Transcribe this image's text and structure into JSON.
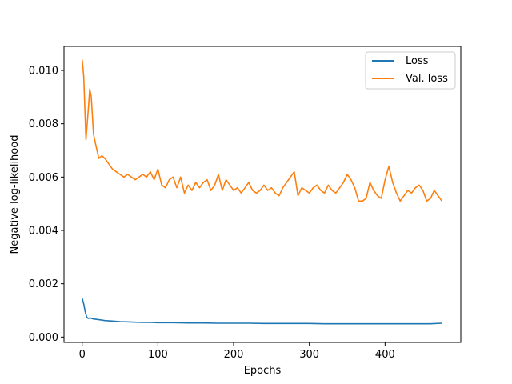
{
  "chart_data": {
    "type": "line",
    "xlabel": "Epochs",
    "ylabel": "Negative log-likelihood",
    "xlim": [
      -24,
      500
    ],
    "ylim": [
      -0.0002,
      0.0109
    ],
    "x_ticks": [
      0,
      100,
      200,
      300,
      400
    ],
    "x_tick_labels": [
      "0",
      "100",
      "200",
      "300",
      "400"
    ],
    "y_ticks": [
      0.0,
      0.002,
      0.004,
      0.006,
      0.008,
      0.01
    ],
    "y_tick_labels": [
      "0.000",
      "0.002",
      "0.004",
      "0.006",
      "0.008",
      "0.010"
    ],
    "grid": false,
    "legend_position": "top-right",
    "series": [
      {
        "name": "Loss",
        "color": "#1f77b4",
        "x": [
          0,
          2,
          4,
          6,
          8,
          10,
          15,
          20,
          30,
          40,
          50,
          60,
          70,
          80,
          90,
          100,
          120,
          140,
          160,
          180,
          200,
          220,
          240,
          260,
          280,
          300,
          320,
          340,
          360,
          380,
          400,
          420,
          440,
          460,
          475
        ],
        "y": [
          0.00145,
          0.00125,
          0.00095,
          0.00075,
          0.0007,
          0.00072,
          0.00068,
          0.00066,
          0.00062,
          0.0006,
          0.00058,
          0.00057,
          0.00056,
          0.00055,
          0.00055,
          0.00054,
          0.00054,
          0.00053,
          0.00053,
          0.00052,
          0.00052,
          0.00052,
          0.00051,
          0.00051,
          0.00051,
          0.00051,
          0.0005,
          0.0005,
          0.0005,
          0.0005,
          0.0005,
          0.0005,
          0.0005,
          0.0005,
          0.00052
        ]
      },
      {
        "name": "Val. loss",
        "color": "#ff7f0e",
        "x": [
          0,
          2,
          5,
          8,
          10,
          12,
          15,
          18,
          22,
          26,
          30,
          35,
          40,
          45,
          50,
          55,
          60,
          65,
          70,
          75,
          80,
          85,
          90,
          95,
          100,
          105,
          110,
          115,
          120,
          125,
          130,
          135,
          140,
          145,
          150,
          155,
          160,
          165,
          170,
          175,
          180,
          185,
          190,
          195,
          200,
          205,
          210,
          215,
          220,
          225,
          230,
          235,
          240,
          245,
          250,
          255,
          260,
          265,
          270,
          275,
          280,
          285,
          290,
          295,
          300,
          305,
          310,
          315,
          320,
          325,
          330,
          335,
          340,
          345,
          350,
          355,
          360,
          365,
          370,
          375,
          380,
          385,
          390,
          395,
          400,
          405,
          410,
          415,
          420,
          425,
          430,
          435,
          440,
          445,
          450,
          455,
          460,
          465,
          470,
          475
        ],
        "y": [
          0.0104,
          0.0098,
          0.0074,
          0.0085,
          0.0093,
          0.009,
          0.0076,
          0.0072,
          0.0067,
          0.0068,
          0.0067,
          0.0065,
          0.0063,
          0.0062,
          0.0061,
          0.006,
          0.0061,
          0.006,
          0.0059,
          0.006,
          0.0061,
          0.006,
          0.0062,
          0.0059,
          0.0063,
          0.0057,
          0.0056,
          0.0059,
          0.006,
          0.0056,
          0.006,
          0.0054,
          0.0057,
          0.0055,
          0.0058,
          0.0056,
          0.0058,
          0.0059,
          0.0055,
          0.0057,
          0.0061,
          0.0055,
          0.0059,
          0.0057,
          0.0055,
          0.0056,
          0.0054,
          0.0056,
          0.0058,
          0.0055,
          0.0054,
          0.0055,
          0.0057,
          0.0055,
          0.0056,
          0.0054,
          0.0053,
          0.0056,
          0.0058,
          0.006,
          0.0062,
          0.0053,
          0.0056,
          0.0055,
          0.0054,
          0.0056,
          0.0057,
          0.0055,
          0.0054,
          0.0057,
          0.0055,
          0.0054,
          0.0056,
          0.0058,
          0.0061,
          0.0059,
          0.0056,
          0.0051,
          0.0051,
          0.0052,
          0.0058,
          0.0055,
          0.0053,
          0.0052,
          0.0059,
          0.0064,
          0.0058,
          0.0054,
          0.0051,
          0.0053,
          0.0055,
          0.0054,
          0.0056,
          0.0057,
          0.0055,
          0.0051,
          0.0052,
          0.0055,
          0.0053,
          0.0051
        ]
      }
    ]
  }
}
